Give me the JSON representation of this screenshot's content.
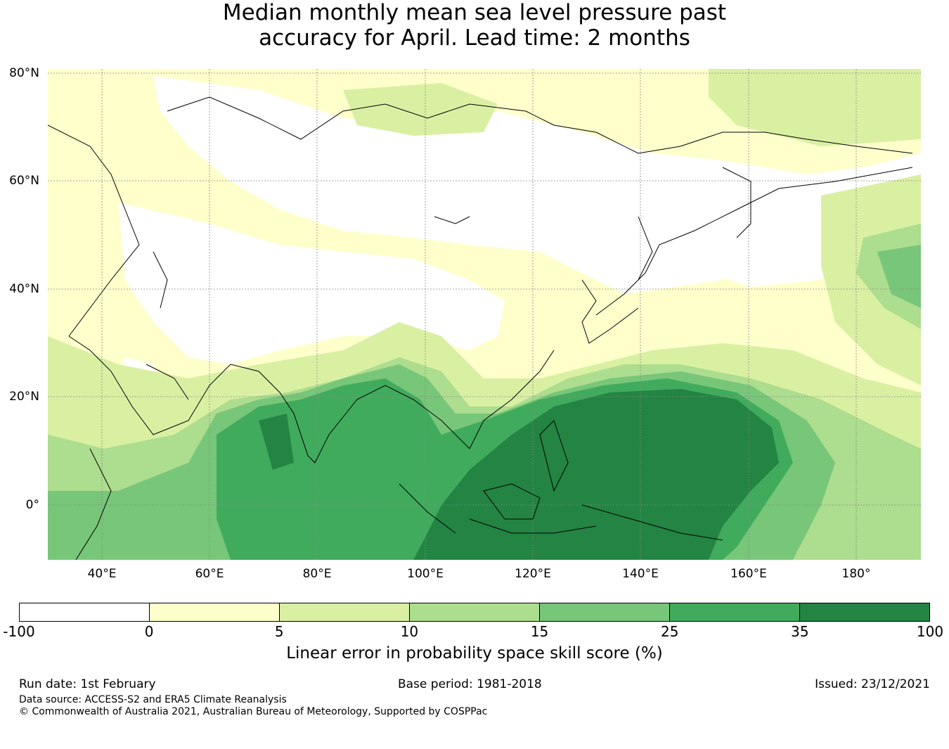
{
  "title_line1": "Median monthly mean sea level pressure past",
  "title_line2": "accuracy for April. Lead time: 2 months",
  "lat_labels": [
    "80°N",
    "60°N",
    "40°N",
    "20°N",
    "0°"
  ],
  "lon_labels": [
    "40°E",
    "60°E",
    "80°E",
    "100°E",
    "120°E",
    "140°E",
    "160°E",
    "180°"
  ],
  "colorbar": {
    "ticks": [
      "-100",
      "0",
      "5",
      "10",
      "15",
      "25",
      "35",
      "100"
    ],
    "colors": [
      "#ffffff",
      "#ffffcc",
      "#d9f0a3",
      "#addd8e",
      "#78c679",
      "#41ab5d",
      "#238443"
    ],
    "label": "Linear error in probability space skill score (%)"
  },
  "footer": {
    "run_date": "Run date: 1st February",
    "base_period": "Base period: 1981-2018",
    "issued": "Issued: 23/12/2021",
    "data_source": "Data source: ACCESS-S2 and ERA5 Climate Reanalysis",
    "copyright": "© Commonwealth of Australia 2021, Australian Bureau of Meteorology, Supported by COSPPac"
  }
}
